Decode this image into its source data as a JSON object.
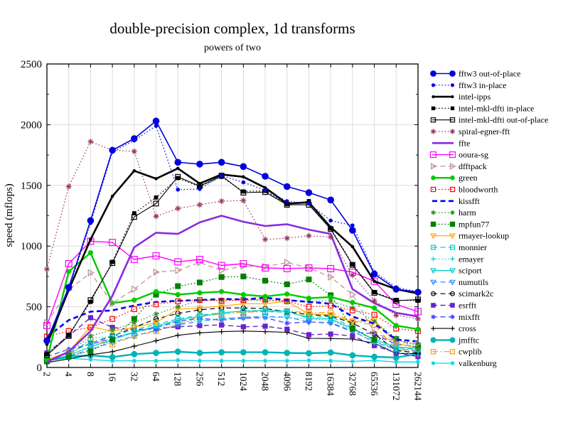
{
  "title": "double-precision complex, 1d transforms",
  "subtitle": "powers of two",
  "ylabel": "speed (mflops)",
  "chart_data": {
    "type": "line",
    "x_scale": "log2",
    "grid": true,
    "legend_position": "right",
    "categories": [
      2,
      4,
      8,
      16,
      32,
      64,
      128,
      256,
      512,
      1024,
      2048,
      4096,
      8192,
      16384,
      32768,
      65536,
      131072,
      262144
    ],
    "x_tick_labels": [
      "2",
      "4",
      "8",
      "16",
      "32",
      "64",
      "128",
      "256",
      "512",
      "1024",
      "2048",
      "4096",
      "8192",
      "16384",
      "32768",
      "65536",
      "131072",
      "262144"
    ],
    "ylim": [
      0,
      2500
    ],
    "yticks": [
      0,
      500,
      1000,
      1500,
      2000,
      2500
    ],
    "yticks_minor": [
      250,
      750,
      1250,
      1750,
      2250
    ],
    "grid_color": "#d8d8d8",
    "series": [
      {
        "name": "fftw3 out-of-place",
        "color": "#0000e0",
        "line": "solid",
        "lw": 1.6,
        "marker": "circle",
        "ms": 4.2,
        "filled": true,
        "values": [
          220,
          660,
          1210,
          1790,
          1885,
          2030,
          1690,
          1675,
          1690,
          1655,
          1575,
          1490,
          1440,
          1380,
          1130,
          770,
          645,
          620
        ]
      },
      {
        "name": "fftw3 in-place",
        "color": "#0000e0",
        "line": "dot",
        "lw": 1.2,
        "marker": "circle",
        "ms": 2.2,
        "filled": true,
        "values": [
          210,
          645,
          1190,
          1775,
          1870,
          1990,
          1465,
          1470,
          1580,
          1525,
          1460,
          1370,
          1350,
          1210,
          1170,
          785,
          660,
          625
        ]
      },
      {
        "name": "intel-ipps",
        "color": "#000000",
        "line": "solid",
        "lw": 2.6,
        "marker": "circle",
        "ms": 1.7,
        "filled": true,
        "values": [
          190,
          640,
          1055,
          1410,
          1620,
          1555,
          1640,
          1515,
          1590,
          1570,
          1480,
          1350,
          1360,
          1155,
          995,
          710,
          645,
          610
        ]
      },
      {
        "name": "intel-mkl-dfti in-place",
        "color": "#000000",
        "line": "dot",
        "lw": 1.2,
        "marker": "square",
        "ms": 2.3,
        "filled": true,
        "values": [
          110,
          270,
          540,
          870,
          1270,
          1400,
          1560,
          1490,
          1570,
          1450,
          1455,
          1345,
          1370,
          1145,
          850,
          620,
          555,
          550
        ]
      },
      {
        "name": "intel-mkl-dfti out-of-place",
        "color": "#000000",
        "line": "solid",
        "lw": 1.1,
        "marker": "square",
        "ms": 3.4,
        "filled": false,
        "values": [
          100,
          260,
          555,
          860,
          1240,
          1350,
          1570,
          1495,
          1580,
          1440,
          1445,
          1340,
          1340,
          1140,
          845,
          615,
          550,
          560
        ]
      },
      {
        "name": "spiral-egner-fft",
        "color": "#993366",
        "line": "dot",
        "lw": 1.2,
        "marker": "asterisk",
        "ms": 4.0,
        "filled": false,
        "values": [
          810,
          1490,
          1860,
          1790,
          1780,
          1245,
          1310,
          1340,
          1370,
          1375,
          1055,
          1065,
          1085,
          1075,
          760,
          550,
          430,
          400
        ]
      },
      {
        "name": "ffte",
        "color": "#8a2be2",
        "line": "solid",
        "lw": 2.6,
        "marker": "none",
        "ms": 0,
        "filled": false,
        "values": [
          45,
          130,
          300,
          590,
          990,
          1110,
          1100,
          1195,
          1250,
          1200,
          1165,
          1180,
          1135,
          1100,
          645,
          530,
          450,
          420
        ]
      },
      {
        "name": "ooura-sg",
        "color": "#ff00ff",
        "line": "solid",
        "lw": 1.4,
        "marker": "square",
        "ms": 4.4,
        "filled": false,
        "values": [
          345,
          855,
          1040,
          1030,
          890,
          920,
          870,
          890,
          840,
          855,
          820,
          815,
          820,
          814,
          785,
          710,
          520,
          460
        ]
      },
      {
        "name": "dfftpack",
        "color": "#bc8f8f",
        "line": "dash",
        "lw": 1.2,
        "marker": "tri-right",
        "ms": 4.2,
        "filled": false,
        "values": [
          370,
          640,
          780,
          530,
          645,
          785,
          800,
          865,
          800,
          835,
          830,
          865,
          820,
          745,
          600,
          290,
          205,
          200
        ]
      },
      {
        "name": "green",
        "color": "#00cc00",
        "line": "solid",
        "lw": 2.4,
        "marker": "circle",
        "ms": 3.0,
        "filled": true,
        "values": [
          65,
          790,
          945,
          530,
          555,
          625,
          600,
          615,
          625,
          600,
          585,
          605,
          570,
          580,
          535,
          490,
          345,
          315
        ]
      },
      {
        "name": "bloodworth",
        "color": "#ff0000",
        "line": "dot",
        "lw": 1.2,
        "marker": "square",
        "ms": 3.4,
        "filled": false,
        "values": [
          255,
          300,
          330,
          400,
          480,
          520,
          545,
          555,
          550,
          555,
          560,
          545,
          500,
          510,
          470,
          435,
          320,
          300
        ]
      },
      {
        "name": "kissfft",
        "color": "#0000ff",
        "line": "dash",
        "lw": 2.6,
        "marker": "none",
        "ms": 0,
        "filled": false,
        "values": [
          250,
          390,
          460,
          470,
          510,
          540,
          550,
          555,
          565,
          560,
          575,
          555,
          540,
          525,
          420,
          360,
          230,
          215
        ]
      },
      {
        "name": "harm",
        "color": "#2e8b2e",
        "line": "dot",
        "lw": 1.2,
        "marker": "asterisk",
        "ms": 3.6,
        "filled": false,
        "values": [
          60,
          120,
          260,
          310,
          370,
          440,
          500,
          550,
          555,
          560,
          550,
          550,
          545,
          550,
          490,
          380,
          240,
          150
        ]
      },
      {
        "name": "mpfun77",
        "color": "#008000",
        "line": "dot",
        "lw": 1.4,
        "marker": "square",
        "ms": 3.4,
        "filled": true,
        "values": [
          50,
          95,
          135,
          230,
          400,
          600,
          670,
          700,
          745,
          750,
          715,
          685,
          725,
          595,
          320,
          230,
          235,
          180
        ]
      },
      {
        "name": "rmayer-lookup",
        "color": "#ffa500",
        "line": "solid",
        "lw": 1.2,
        "marker": "tri-down",
        "ms": 3.8,
        "filled": false,
        "values": [
          65,
          130,
          335,
          300,
          330,
          370,
          480,
          490,
          505,
          525,
          525,
          545,
          440,
          435,
          375,
          390,
          200,
          160
        ]
      },
      {
        "name": "monnier",
        "color": "#00cdcd",
        "line": "dash",
        "lw": 1.2,
        "marker": "square",
        "ms": 3.2,
        "filled": false,
        "values": [
          60,
          120,
          200,
          265,
          310,
          355,
          400,
          430,
          450,
          465,
          460,
          455,
          415,
          420,
          330,
          215,
          160,
          150
        ]
      },
      {
        "name": "emayer",
        "color": "#00cdcd",
        "line": "dot",
        "lw": 1.2,
        "marker": "plus",
        "ms": 3.6,
        "filled": false,
        "values": [
          45,
          90,
          245,
          250,
          290,
          330,
          365,
          390,
          405,
          410,
          415,
          410,
          400,
          390,
          310,
          200,
          130,
          100
        ]
      },
      {
        "name": "sciport",
        "color": "#00cdcd",
        "line": "solid",
        "lw": 1.2,
        "marker": "tri-down",
        "ms": 3.8,
        "filled": false,
        "values": [
          50,
          100,
          170,
          230,
          290,
          340,
          390,
          420,
          450,
          465,
          470,
          465,
          405,
          400,
          320,
          230,
          170,
          155
        ]
      },
      {
        "name": "numutils",
        "color": "#2e8cff",
        "line": "dash",
        "lw": 1.2,
        "marker": "tri-down",
        "ms": 3.8,
        "filled": false,
        "values": [
          45,
          90,
          150,
          205,
          260,
          305,
          350,
          380,
          400,
          415,
          420,
          415,
          375,
          370,
          300,
          210,
          150,
          140
        ]
      },
      {
        "name": "scimark2c",
        "color": "#000000",
        "line": "dash",
        "lw": 1.2,
        "marker": "circle",
        "ms": 3.2,
        "filled": false,
        "values": [
          60,
          120,
          200,
          258,
          330,
          400,
          445,
          475,
          490,
          490,
          485,
          460,
          435,
          425,
          365,
          275,
          140,
          120
        ]
      },
      {
        "name": "esrfft",
        "color": "#6a22cc",
        "line": "dash",
        "lw": 1.4,
        "marker": "square",
        "ms": 3.0,
        "filled": true,
        "values": [
          120,
          260,
          410,
          330,
          310,
          320,
          335,
          345,
          350,
          335,
          340,
          315,
          270,
          275,
          260,
          180,
          120,
          90
        ]
      },
      {
        "name": "mixfft",
        "color": "#4444ff",
        "line": "dash",
        "lw": 1.3,
        "marker": "asterisk",
        "ms": 3.6,
        "filled": false,
        "values": [
          90,
          150,
          190,
          240,
          290,
          330,
          380,
          405,
          390,
          405,
          410,
          365,
          375,
          365,
          295,
          275,
          190,
          170
        ]
      },
      {
        "name": "cross",
        "color": "#000000",
        "line": "solid",
        "lw": 1.1,
        "marker": "plus",
        "ms": 3.6,
        "filled": false,
        "values": [
          40,
          70,
          105,
          130,
          175,
          220,
          265,
          285,
          295,
          300,
          295,
          290,
          240,
          238,
          234,
          200,
          115,
          115
        ]
      },
      {
        "name": "jmfftc",
        "color": "#00b5b5",
        "line": "solid",
        "lw": 2.4,
        "marker": "circle",
        "ms": 3.8,
        "filled": true,
        "values": [
          60,
          90,
          100,
          85,
          110,
          120,
          130,
          120,
          125,
          125,
          125,
          120,
          117,
          123,
          100,
          88,
          82,
          111
        ]
      },
      {
        "name": "cwplib",
        "color": "#ff9900",
        "line": "dashdot",
        "lw": 1.2,
        "marker": "square",
        "ms": 3.4,
        "filled": false,
        "values": [
          50,
          100,
          230,
          190,
          260,
          300,
          350,
          420,
          440,
          455,
          460,
          465,
          450,
          455,
          380,
          350,
          150,
          130
        ]
      },
      {
        "name": "valkenburg",
        "color": "#00d5e5",
        "line": "solid",
        "lw": 1.3,
        "marker": "asterisk",
        "ms": 3.2,
        "filled": false,
        "values": [
          60,
          75,
          65,
          55,
          55,
          55,
          60,
          55,
          55,
          55,
          55,
          55,
          58,
          55,
          50,
          58,
          45,
          45
        ]
      }
    ]
  }
}
